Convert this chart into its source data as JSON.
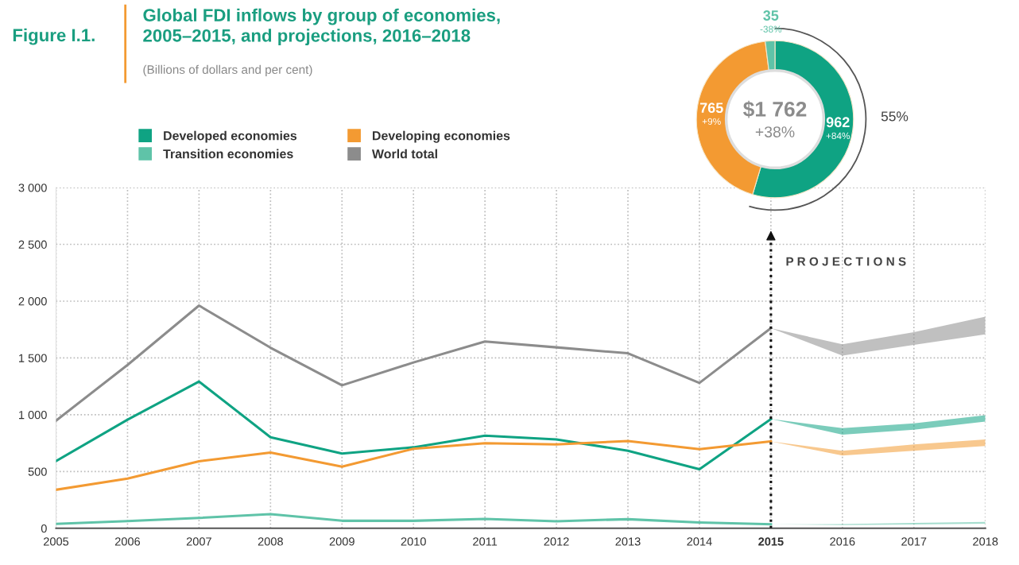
{
  "chart_data": [
    {
      "type": "line",
      "title": "Global FDI inflows by group of economies,\n2005–2015, and projections, 2016–2018",
      "subtitle": "(Billions of dollars and per cent)",
      "x": [
        2005,
        2006,
        2007,
        2008,
        2009,
        2010,
        2011,
        2012,
        2013,
        2014,
        2015,
        2016,
        2017,
        2018
      ],
      "series": [
        {
          "name": "Developed economies",
          "color": "#0fa383",
          "values": [
            592,
            956,
            1292,
            802,
            658,
            713,
            815,
            782,
            683,
            520,
            962,
            null,
            null,
            null
          ],
          "lower": [
            null,
            null,
            null,
            null,
            null,
            null,
            null,
            null,
            null,
            null,
            962,
            825,
            868,
            939
          ],
          "upper": [
            null,
            null,
            null,
            null,
            null,
            null,
            null,
            null,
            null,
            null,
            962,
            882,
            924,
            995
          ]
        },
        {
          "name": "Developing economies",
          "color": "#f39a32",
          "values": [
            339,
            438,
            590,
            667,
            543,
            700,
            749,
            739,
            768,
            697,
            765,
            null,
            null,
            null
          ],
          "lower": [
            null,
            null,
            null,
            null,
            null,
            null,
            null,
            null,
            null,
            null,
            765,
            640,
            683,
            725
          ],
          "upper": [
            null,
            null,
            null,
            null,
            null,
            null,
            null,
            null,
            null,
            null,
            765,
            683,
            739,
            782
          ]
        },
        {
          "name": "Transition economies",
          "color": "#5fc3a8",
          "values": [
            39,
            63,
            91,
            124,
            66,
            66,
            83,
            62,
            80,
            51,
            35,
            null,
            null,
            null
          ],
          "lower": [
            null,
            null,
            null,
            null,
            null,
            null,
            null,
            null,
            null,
            null,
            35,
            28,
            34,
            40
          ],
          "upper": [
            null,
            null,
            null,
            null,
            null,
            null,
            null,
            null,
            null,
            null,
            35,
            37,
            48,
            57
          ]
        },
        {
          "name": "World total",
          "color": "#8c8c8c",
          "values": [
            948,
            1438,
            1961,
            1590,
            1259,
            1460,
            1645,
            1593,
            1541,
            1280,
            1762,
            null,
            null,
            null
          ],
          "lower": [
            null,
            null,
            null,
            null,
            null,
            null,
            null,
            null,
            null,
            null,
            1762,
            1520,
            1615,
            1707
          ],
          "upper": [
            null,
            null,
            null,
            null,
            null,
            null,
            null,
            null,
            null,
            null,
            1762,
            1620,
            1726,
            1863
          ]
        }
      ],
      "xlim": [
        2005,
        2018
      ],
      "xticks": [
        2005,
        2006,
        2007,
        2008,
        2009,
        2010,
        2011,
        2012,
        2013,
        2014,
        2015,
        2016,
        2017,
        2018
      ],
      "ylim": [
        0,
        3000
      ],
      "yticks": [
        0,
        500,
        {
          "value": 1000,
          "label": "1 000"
        },
        {
          "value": 1500,
          "label": "1 500"
        },
        {
          "value": 2000,
          "label": "2 000"
        },
        {
          "value": 2500,
          "label": "2 500"
        },
        {
          "value": 3000,
          "label": "3 000"
        }
      ],
      "grid": true,
      "legend": "top left",
      "marker": "none",
      "line_style": "solid",
      "ref_lines": [
        {
          "axis": "x",
          "value": 2015,
          "label": null,
          "color": "#111111",
          "line_style": "dotted"
        }
      ],
      "annotations": [
        "Figure I.1.",
        "P R O J E C T I O N S"
      ]
    },
    {
      "type": "donut",
      "categories": [
        null,
        null,
        null
      ],
      "values": [
        962,
        765,
        35
      ],
      "colors": [
        "#0fa383",
        "#f39a32",
        "#5fc3a8"
      ],
      "data_labels": true,
      "annotations": [
        "+84%",
        "+9%",
        "-38%",
        "$1 762",
        "+38%",
        "55%"
      ]
    }
  ]
}
